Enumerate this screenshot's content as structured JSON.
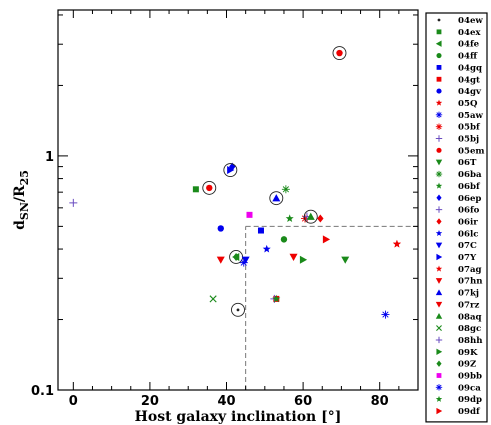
{
  "chart_data": {
    "type": "scatter",
    "xlabel": "Host galaxy inclination [°]",
    "ylabel_main": "d",
    "ylabel_sub": "SN",
    "ylabel_mid": "/R",
    "ylabel_sub2": "25",
    "xlim": [
      -4,
      90
    ],
    "ylim": [
      0.1,
      4.2
    ],
    "yscale": "log",
    "x_ticks": [
      0,
      20,
      40,
      60,
      80
    ],
    "x_tick_labels": [
      "0",
      "20",
      "40",
      "60",
      "80"
    ],
    "y_ticks": [
      0.1,
      1
    ],
    "y_tick_labels": [
      "0.1",
      "1"
    ],
    "legend_position": "right",
    "reference_lines": {
      "x": 45,
      "y": 0.5,
      "style": "dashed"
    },
    "series": [
      {
        "name": "04ew",
        "color": "#222222",
        "marker": "dot",
        "points": [
          [
            43,
            0.22
          ]
        ],
        "circled": [
          0
        ]
      },
      {
        "name": "04ex",
        "color": "#1a8a1a",
        "marker": "square",
        "points": [
          [
            32,
            0.72
          ]
        ],
        "circled": []
      },
      {
        "name": "04fe",
        "color": "#1a8a1a",
        "marker": "tri-left",
        "points": [
          [
            42.5,
            0.37
          ]
        ],
        "circled": [
          0
        ]
      },
      {
        "name": "04ff",
        "color": "#1a8a1a",
        "marker": "circle",
        "points": [
          [
            55,
            0.44
          ]
        ],
        "circled": []
      },
      {
        "name": "04gq",
        "color": "#0000ee",
        "marker": "square",
        "points": [
          [
            49,
            0.48
          ]
        ],
        "circled": []
      },
      {
        "name": "04gt",
        "color": "#ee0000",
        "marker": "square",
        "points": [
          [
            53,
            0.245
          ]
        ],
        "circled": []
      },
      {
        "name": "04gv",
        "color": "#0000ee",
        "marker": "circle",
        "points": [
          [
            38.5,
            0.49
          ]
        ],
        "circled": []
      },
      {
        "name": "05Q",
        "color": "#ee0000",
        "marker": "star",
        "points": [
          [
            84.5,
            0.42
          ]
        ],
        "circled": []
      },
      {
        "name": "05aw",
        "color": "#0000ee",
        "marker": "asterisk",
        "points": [
          [
            81.5,
            0.21
          ]
        ],
        "circled": []
      },
      {
        "name": "05bf",
        "color": "#ee0000",
        "marker": "asterisk",
        "points": [
          [
            60.5,
            0.54
          ]
        ],
        "circled": []
      },
      {
        "name": "05bj",
        "color": "#6a4cc0",
        "marker": "plus",
        "points": [
          [
            0,
            0.63
          ]
        ],
        "circled": []
      },
      {
        "name": "05em",
        "color": "#ee0000",
        "marker": "circle",
        "points": [
          [
            35.5,
            0.73
          ],
          [
            69.5,
            2.75
          ]
        ],
        "circled": [
          0,
          1
        ]
      },
      {
        "name": "06T",
        "color": "#1a8a1a",
        "marker": "tri-down",
        "points": [
          [
            71,
            0.36
          ]
        ],
        "circled": []
      },
      {
        "name": "06ba",
        "color": "#1a8a1a",
        "marker": "asterisk",
        "points": [
          [
            55.5,
            0.72
          ]
        ],
        "circled": []
      },
      {
        "name": "06bf",
        "color": "#1a8a1a",
        "marker": "star",
        "points": [
          [
            56.5,
            0.54
          ]
        ],
        "circled": []
      },
      {
        "name": "06ep",
        "color": "#0000ee",
        "marker": "diamond",
        "points": [
          [
            41.5,
            0.9
          ]
        ],
        "circled": []
      },
      {
        "name": "06fo",
        "color": "#6a4cc0",
        "marker": "plus",
        "points": [
          [
            61,
            0.55
          ]
        ],
        "circled": []
      },
      {
        "name": "06ir",
        "color": "#ee0000",
        "marker": "diamond",
        "points": [
          [
            64.5,
            0.54
          ]
        ],
        "circled": []
      },
      {
        "name": "06lc",
        "color": "#0000ee",
        "marker": "star",
        "points": [
          [
            50.5,
            0.4
          ]
        ],
        "circled": []
      },
      {
        "name": "07C",
        "color": "#0000ee",
        "marker": "tri-down",
        "points": [
          [
            45,
            0.36
          ]
        ],
        "circled": []
      },
      {
        "name": "07Y",
        "color": "#0000ee",
        "marker": "tri-right",
        "points": [
          [
            41,
            0.87
          ]
        ],
        "circled": [
          0
        ]
      },
      {
        "name": "07ag",
        "color": "#ee0000",
        "marker": "star",
        "points": [
          [
            84.5,
            0.42
          ]
        ],
        "circled": []
      },
      {
        "name": "07hn",
        "color": "#ee0000",
        "marker": "tri-down",
        "points": [
          [
            57.5,
            0.37
          ]
        ],
        "circled": []
      },
      {
        "name": "07kj",
        "color": "#0000ee",
        "marker": "tri-up",
        "points": [
          [
            53,
            0.66
          ]
        ],
        "circled": [
          0
        ]
      },
      {
        "name": "07rz",
        "color": "#ee0000",
        "marker": "tri-down",
        "points": [
          [
            38.5,
            0.36
          ]
        ],
        "circled": []
      },
      {
        "name": "08aq",
        "color": "#1a8a1a",
        "marker": "tri-up",
        "points": [
          [
            62,
            0.55
          ]
        ],
        "circled": [
          0
        ]
      },
      {
        "name": "08gc",
        "color": "#1a8a1a",
        "marker": "x",
        "points": [
          [
            36.5,
            0.245
          ]
        ],
        "circled": []
      },
      {
        "name": "08hh",
        "color": "#6a4cc0",
        "marker": "plus",
        "points": [
          [
            52.5,
            0.245
          ]
        ],
        "circled": []
      },
      {
        "name": "09K",
        "color": "#1a8a1a",
        "marker": "tri-right",
        "points": [
          [
            60,
            0.36
          ]
        ],
        "circled": []
      },
      {
        "name": "09Z",
        "color": "#1a8a1a",
        "marker": "diamond",
        "points": [
          [
            42.5,
            0.37
          ]
        ],
        "circled": []
      },
      {
        "name": "09bb",
        "color": "#ee00ee",
        "marker": "square",
        "points": [
          [
            46,
            0.56
          ]
        ],
        "circled": []
      },
      {
        "name": "09ca",
        "color": "#0000ee",
        "marker": "asterisk",
        "points": [
          [
            44.5,
            0.35
          ]
        ],
        "circled": []
      },
      {
        "name": "09dp",
        "color": "#1a8a1a",
        "marker": "star",
        "points": [
          [
            53,
            0.245
          ]
        ],
        "circled": []
      },
      {
        "name": "09df",
        "color": "#ee0000",
        "marker": "tri-right",
        "points": [
          [
            66,
            0.44
          ]
        ],
        "circled": []
      }
    ]
  }
}
